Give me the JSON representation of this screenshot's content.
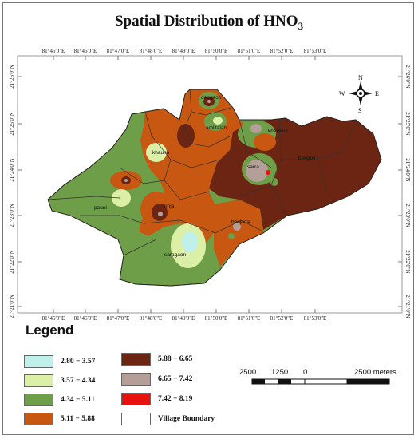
{
  "title": {
    "main": "Spatial Distribution of HNO",
    "sub": "3"
  },
  "axes": {
    "top_lon": [
      "81°45'0\"E",
      "81°46'0\"E",
      "81°47'0\"E",
      "81°48'0\"E",
      "81°49'0\"E",
      "81°50'0\"E",
      "81°51'0\"E",
      "81°52'0\"E",
      "81°53'0\"E"
    ],
    "bottom_lon": [
      "81°45'0\"E",
      "81°46'0\"E",
      "81°47'0\"E",
      "81°48'0\"E",
      "81°49'0\"E",
      "81°50'0\"E",
      "81°51'0\"E",
      "81°52'0\"E",
      "81°53'0\"E"
    ],
    "lat": [
      "21°26'0\"N",
      "21°25'0\"N",
      "21°24'0\"N",
      "21°23'0\"N",
      "21°22'0\"N",
      "21°21'0\"N"
    ]
  },
  "villages": [
    "deogaon",
    "amlitalab",
    "khauna",
    "khamaul",
    "sarra",
    "bengoli",
    "pauni",
    "rinja",
    "banjoda",
    "saragaon"
  ],
  "north_arrow": {
    "n": "N",
    "s": "S",
    "e": "E",
    "w": "W"
  },
  "legend": {
    "title": "Legend",
    "items": [
      {
        "label": "2.80 − 3.57",
        "color": "#bff0ec"
      },
      {
        "label": "3.57 − 4.34",
        "color": "#dcefa6"
      },
      {
        "label": "4.34 − 5.11",
        "color": "#6f9e48"
      },
      {
        "label": "5.11 − 5.88",
        "color": "#c85712"
      },
      {
        "label": "5.88 − 6.65",
        "color": "#6c2513"
      },
      {
        "label": "6.65 − 7.42",
        "color": "#b39f98"
      },
      {
        "label": "7.42 − 8.19",
        "color": "#e8110e"
      },
      {
        "label": "Village Boundary",
        "color": "#ffffff"
      }
    ]
  },
  "scale_bar": {
    "labels": [
      "2500",
      "1250",
      "0",
      "2500 meters"
    ]
  }
}
